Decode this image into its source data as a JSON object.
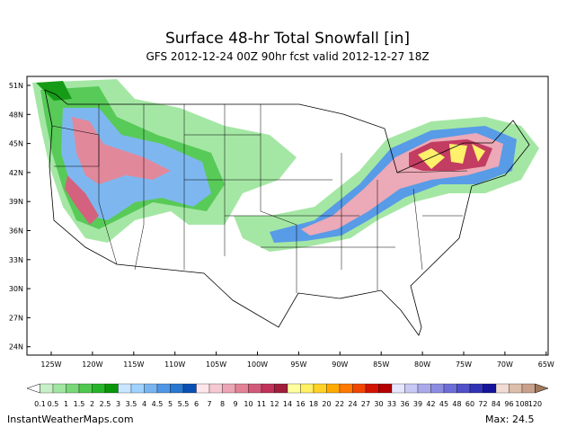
{
  "title": "Surface 48-hr Total Snowfall [in]",
  "subtitle": "GFS 2012-12-24 00Z 90hr fcst valid 2012-12-27 18Z",
  "lat_labels": [
    "51N",
    "48N",
    "45N",
    "42N",
    "39N",
    "36N",
    "33N",
    "30N",
    "27N",
    "24N"
  ],
  "lon_labels": [
    "125W",
    "120W",
    "115W",
    "110W",
    "105W",
    "100W",
    "95W",
    "90W",
    "85W",
    "80W",
    "75W",
    "70W",
    "65W"
  ],
  "colorbar": {
    "labels": [
      "0.1",
      "0.5",
      "1",
      "1.5",
      "2",
      "2.5",
      "3",
      "3.5",
      "4",
      "4.5",
      "5",
      "5.5",
      "6",
      "7",
      "8",
      "9",
      "10",
      "11",
      "12",
      "14",
      "16",
      "18",
      "20",
      "22",
      "24",
      "27",
      "30",
      "33",
      "36",
      "39",
      "42",
      "45",
      "48",
      "60",
      "72",
      "84",
      "96",
      "108",
      "120"
    ],
    "colors": [
      "#ffffff",
      "#c8f0c8",
      "#a0e6a0",
      "#78d878",
      "#50c850",
      "#28b428",
      "#0a960a",
      "#c8e6ff",
      "#a0d2ff",
      "#78b4f0",
      "#5096e6",
      "#2878d2",
      "#0a50b4",
      "#ffe6eb",
      "#f5c8d2",
      "#eba5b4",
      "#e18296",
      "#d25a78",
      "#c0325a",
      "#a01e3c",
      "#ffffa0",
      "#fff064",
      "#ffd228",
      "#ffaa00",
      "#ff7800",
      "#f04600",
      "#d21400",
      "#b40000",
      "#e6e6ff",
      "#c8c8f5",
      "#aaaaeb",
      "#8c8ce1",
      "#6e6ed7",
      "#5050c8",
      "#3232b4",
      "#14149b",
      "#f0dcd2",
      "#dcbeaa",
      "#c8a08c",
      "#a0785a"
    ]
  },
  "footer": "InstantWeatherMaps.com",
  "max_label": "Max:  24.5"
}
